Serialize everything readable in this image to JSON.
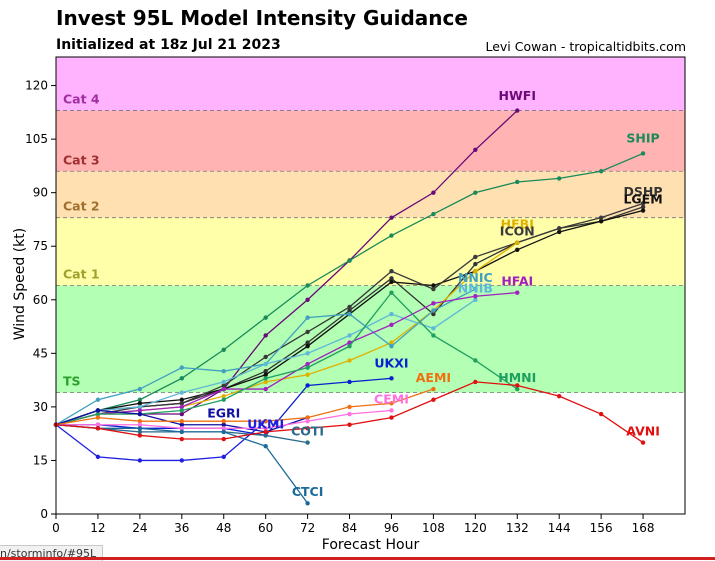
{
  "title": "Invest 95L Model Intensity Guidance",
  "subtitle": "Initialized at 18z Jul 21 2023",
  "credit": "Levi Cowan - tropicaltidbits.com",
  "status_url": "n/storminfo/#95L",
  "chart_data": {
    "type": "line",
    "xlabel": "Forecast Hour",
    "ylabel": "Wind Speed (kt)",
    "xlim": [
      0,
      180
    ],
    "ylim": [
      0,
      128
    ],
    "xticks": [
      0,
      12,
      24,
      36,
      48,
      60,
      72,
      84,
      96,
      108,
      120,
      132,
      144,
      156,
      168
    ],
    "yticks": [
      0,
      15,
      30,
      45,
      60,
      75,
      90,
      105,
      120
    ],
    "grid": false,
    "bands": [
      {
        "label": "TS",
        "from": 34,
        "to": 64,
        "color": "#b3ffb3",
        "text_color": "#2aa02a"
      },
      {
        "label": "Cat 1",
        "from": 64,
        "to": 83,
        "color": "#ffffaa",
        "text_color": "#a0a030"
      },
      {
        "label": "Cat 2",
        "from": 83,
        "to": 96,
        "color": "#ffe0b0",
        "text_color": "#a07030"
      },
      {
        "label": "Cat 3",
        "from": 96,
        "to": 113,
        "color": "#ffb3b3",
        "text_color": "#a03030"
      },
      {
        "label": "Cat 4",
        "from": 113,
        "to": 128,
        "color": "#ffb3ff",
        "text_color": "#a030a0"
      }
    ],
    "series": [
      {
        "name": "HWFI",
        "color": "#6a0a7a",
        "x": [
          0,
          12,
          24,
          36,
          48,
          60,
          72,
          84,
          96,
          108,
          120,
          132
        ],
        "y": [
          25,
          28,
          28,
          28,
          35,
          50,
          60,
          71,
          83,
          90,
          102,
          113
        ]
      },
      {
        "name": "SHIP",
        "color": "#1a8a5a",
        "x": [
          0,
          12,
          24,
          36,
          48,
          60,
          72,
          84,
          96,
          108,
          120,
          132,
          144,
          156,
          168
        ],
        "y": [
          25,
          29,
          32,
          38,
          46,
          55,
          64,
          71,
          78,
          84,
          90,
          93,
          94,
          96,
          101
        ]
      },
      {
        "name": "DSHP",
        "color": "#333333",
        "x": [
          0,
          12,
          24,
          36,
          48,
          60,
          72,
          84,
          96,
          108,
          120,
          132,
          144,
          156,
          168
        ],
        "y": [
          25,
          29,
          30,
          31,
          35,
          40,
          48,
          57,
          66,
          56,
          70,
          76,
          80,
          82,
          86
        ]
      },
      {
        "name": "LGEM",
        "color": "#111111",
        "x": [
          0,
          12,
          24,
          36,
          48,
          60,
          72,
          84,
          96,
          108,
          120,
          132,
          144,
          156,
          168
        ],
        "y": [
          25,
          29,
          31,
          32,
          35,
          39,
          47,
          56,
          65,
          64,
          68,
          74,
          79,
          82,
          85
        ]
      },
      {
        "name": "ICON",
        "color": "#3a3a3a",
        "x": [
          0,
          12,
          24,
          36,
          48,
          60,
          72,
          84,
          96,
          108,
          120,
          132,
          144,
          156,
          168
        ],
        "y": [
          25,
          28,
          30,
          31,
          36,
          44,
          51,
          58,
          68,
          63,
          72,
          76,
          80,
          83,
          87
        ]
      },
      {
        "name": "HFBI",
        "color": "#e0b000",
        "x": [
          0,
          12,
          24,
          36,
          48,
          60,
          72,
          84,
          96,
          108,
          120,
          132
        ],
        "y": [
          25,
          28,
          29,
          30,
          33,
          37,
          39,
          43,
          48,
          57,
          68,
          76
        ]
      },
      {
        "name": "NNIC",
        "color": "#40a0c0",
        "x": [
          0,
          12,
          24,
          36,
          48,
          60,
          72,
          84,
          96,
          108,
          120
        ],
        "y": [
          25,
          32,
          35,
          41,
          40,
          42,
          55,
          56,
          47,
          57,
          63
        ]
      },
      {
        "name": "NNIB",
        "color": "#60b8d8",
        "x": [
          0,
          12,
          24,
          36,
          48,
          60,
          72,
          84,
          96,
          108,
          120
        ],
        "y": [
          25,
          29,
          30,
          34,
          37,
          42,
          45,
          50,
          56,
          52,
          60
        ]
      },
      {
        "name": "HFAI",
        "color": "#a020c0",
        "x": [
          0,
          12,
          24,
          36,
          48,
          60,
          72,
          84,
          96,
          108,
          120,
          132
        ],
        "y": [
          25,
          28,
          29,
          30,
          35,
          35,
          42,
          48,
          53,
          59,
          61,
          62
        ]
      },
      {
        "name": "HMNI",
        "color": "#20a060",
        "x": [
          0,
          12,
          24,
          36,
          48,
          60,
          72,
          84,
          96,
          108,
          120,
          132
        ],
        "y": [
          25,
          28,
          28,
          29,
          32,
          38,
          41,
          47,
          62,
          50,
          43,
          35
        ]
      },
      {
        "name": "UKXI",
        "color": "#0a20d0",
        "x": [
          0,
          12,
          24,
          36,
          48,
          60,
          72,
          84,
          96
        ],
        "y": [
          25,
          25,
          24,
          24,
          24,
          22,
          36,
          37,
          38
        ]
      },
      {
        "name": "EGRI",
        "color": "#1010a0",
        "x": [
          0,
          12,
          24,
          36,
          48,
          60,
          72
        ],
        "y": [
          25,
          29,
          28,
          25,
          25,
          23,
          27
        ]
      },
      {
        "name": "UKMI",
        "color": "#2020e0",
        "x": [
          0,
          12,
          24,
          36,
          48,
          60
        ],
        "y": [
          25,
          16,
          15,
          15,
          16,
          26
        ]
      },
      {
        "name": "AEMI",
        "color": "#f07010",
        "x": [
          0,
          12,
          24,
          36,
          48,
          60,
          72,
          84,
          96,
          108
        ],
        "y": [
          25,
          27,
          26,
          26,
          26,
          26,
          27,
          30,
          31,
          35
        ]
      },
      {
        "name": "CEMI",
        "color": "#ff70e0",
        "x": [
          0,
          12,
          24,
          36,
          48,
          60,
          72,
          84,
          96
        ],
        "y": [
          25,
          25,
          25,
          24,
          24,
          24,
          26,
          28,
          29
        ]
      },
      {
        "name": "COTI",
        "color": "#2a6a8a",
        "x": [
          0,
          12,
          24,
          36,
          48,
          60,
          72
        ],
        "y": [
          25,
          24,
          23,
          23,
          23,
          22,
          20
        ]
      },
      {
        "name": "CTCI",
        "color": "#1a6a9a",
        "x": [
          0,
          12,
          24,
          36,
          48,
          60,
          72
        ],
        "y": [
          25,
          24,
          24,
          23,
          23,
          19,
          3
        ]
      },
      {
        "name": "AVNI",
        "color": "#e01010",
        "x": [
          0,
          12,
          24,
          36,
          48,
          60,
          72,
          84,
          96,
          108,
          120,
          132,
          144,
          156,
          168
        ],
        "y": [
          25,
          24,
          22,
          21,
          21,
          23,
          24,
          25,
          27,
          32,
          37,
          36,
          33,
          28,
          20
        ]
      }
    ],
    "labels": [
      {
        "text": "HWFI",
        "series": "HWFI",
        "x": 132,
        "y": 116
      },
      {
        "text": "SHIP",
        "series": "SHIP",
        "x": 168,
        "y": 104
      },
      {
        "text": "DSHP",
        "series": "DSHP",
        "x": 168,
        "y": 89
      },
      {
        "text": "LGEM",
        "series": "LGEM",
        "x": 168,
        "y": 87
      },
      {
        "text": "HFBI",
        "series": "HFBI",
        "x": 132,
        "y": 80
      },
      {
        "text": "ICON",
        "series": "ICON",
        "x": 132,
        "y": 78
      },
      {
        "text": "NNIC",
        "series": "NNIC",
        "x": 120,
        "y": 65
      },
      {
        "text": "NNIB",
        "series": "NNIB",
        "x": 120,
        "y": 62
      },
      {
        "text": "HFAI",
        "series": "HFAI",
        "x": 132,
        "y": 64
      },
      {
        "text": "UKXI",
        "series": "UKXI",
        "x": 96,
        "y": 41
      },
      {
        "text": "AEMI",
        "series": "AEMI",
        "x": 108,
        "y": 37
      },
      {
        "text": "HMNI",
        "series": "HMNI",
        "x": 132,
        "y": 37
      },
      {
        "text": "CEMI",
        "series": "CEMI",
        "x": 96,
        "y": 31
      },
      {
        "text": "EGRI",
        "series": "EGRI",
        "x": 48,
        "y": 27
      },
      {
        "text": "UKMI",
        "series": "UKMI",
        "x": 60,
        "y": 24
      },
      {
        "text": "COTI",
        "series": "COTI",
        "x": 72,
        "y": 22
      },
      {
        "text": "AVNI",
        "series": "AVNI",
        "x": 168,
        "y": 22
      },
      {
        "text": "CTCI",
        "series": "CTCI",
        "x": 72,
        "y": 5
      }
    ]
  }
}
